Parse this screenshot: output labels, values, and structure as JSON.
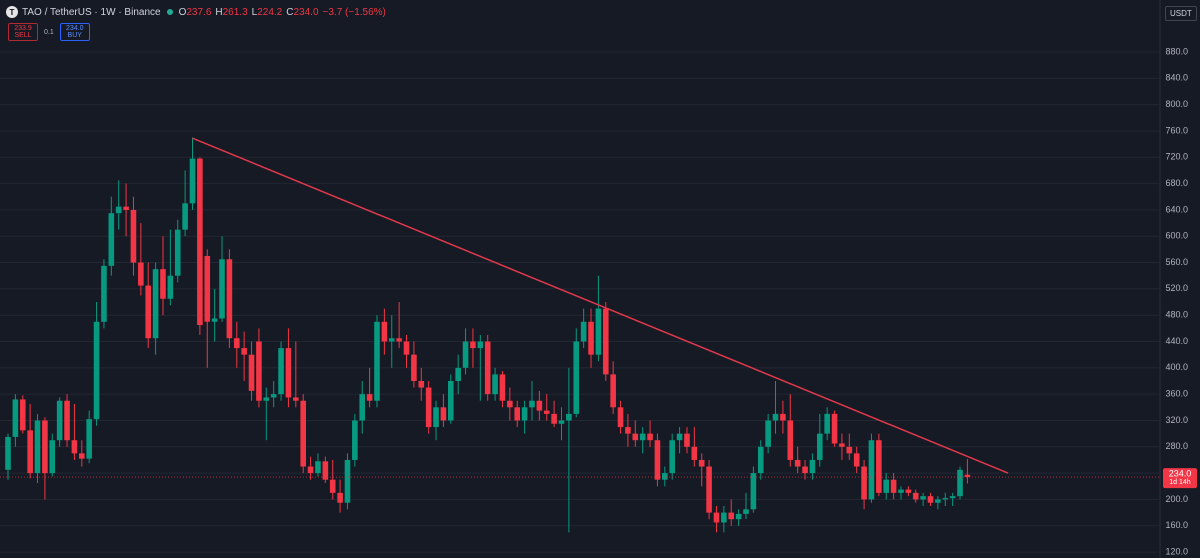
{
  "header": {
    "symbol": "TAO / TetherUS · 1W · Binance",
    "o": "O",
    "h": "H",
    "l": "L",
    "c": "C",
    "ohlc_labels": [
      "237.6",
      "261.3",
      "224.2",
      "234.0"
    ],
    "change": "−3.7 (−1.56%)",
    "sell_price": "233.9",
    "sell": "SELL",
    "spread": "0.1",
    "buy_price": "234.0",
    "buy": "BUY",
    "currency": "USDT"
  },
  "chart_data": {
    "type": "candlestick",
    "up_color": "#089981",
    "down_color": "#f23645",
    "ylim": [
      111,
      959
    ],
    "yticks": [
      {
        "value": 120,
        "label": "120.0"
      },
      {
        "value": 160,
        "label": "160.0"
      },
      {
        "value": 200,
        "label": "200.0"
      },
      {
        "value": 240,
        "label": "240.0"
      },
      {
        "value": 280,
        "label": "280.0"
      },
      {
        "value": 320,
        "label": "320.0"
      },
      {
        "value": 360,
        "label": "360.0"
      },
      {
        "value": 400,
        "label": "400.0"
      },
      {
        "value": 440,
        "label": "440.0"
      },
      {
        "value": 480,
        "label": "480.0"
      },
      {
        "value": 520,
        "label": "520.0"
      },
      {
        "value": 560,
        "label": "560.0"
      },
      {
        "value": 600,
        "label": "600.0"
      },
      {
        "value": 640,
        "label": "640.0"
      },
      {
        "value": 680,
        "label": "680.0"
      },
      {
        "value": 720,
        "label": "720.0"
      },
      {
        "value": 760,
        "label": "760.0"
      },
      {
        "value": 800,
        "label": "800.0"
      },
      {
        "value": 840,
        "label": "840.0"
      },
      {
        "value": 880,
        "label": "880.0"
      }
    ],
    "grid": true,
    "price_label": "234.0",
    "countdown": "1d 14h",
    "trendline": {
      "color": "#e0394a",
      "from": {
        "index": 25,
        "price": 749
      },
      "to": {
        "index": 135.5,
        "price": 240
      }
    },
    "candles": [
      [
        245,
        300,
        230,
        295
      ],
      [
        295,
        360,
        280,
        352
      ],
      [
        352,
        358,
        300,
        305
      ],
      [
        305,
        345,
        232,
        240
      ],
      [
        240,
        330,
        225,
        320
      ],
      [
        320,
        325,
        200,
        240
      ],
      [
        240,
        300,
        235,
        290
      ],
      [
        290,
        355,
        280,
        350
      ],
      [
        350,
        360,
        280,
        290
      ],
      [
        290,
        345,
        260,
        270
      ],
      [
        270,
        290,
        250,
        262
      ],
      [
        262,
        335,
        255,
        322
      ],
      [
        322,
        500,
        312,
        470
      ],
      [
        470,
        565,
        460,
        555
      ],
      [
        555,
        660,
        540,
        635
      ],
      [
        635,
        685,
        610,
        645
      ],
      [
        645,
        680,
        600,
        640
      ],
      [
        640,
        660,
        540,
        560
      ],
      [
        560,
        620,
        510,
        525
      ],
      [
        525,
        560,
        430,
        445
      ],
      [
        445,
        560,
        420,
        550
      ],
      [
        550,
        600,
        480,
        505
      ],
      [
        505,
        610,
        495,
        540
      ],
      [
        540,
        625,
        530,
        610
      ],
      [
        610,
        700,
        600,
        650
      ],
      [
        650,
        750,
        640,
        718
      ],
      [
        718,
        720,
        450,
        465
      ],
      [
        570,
        580,
        400,
        470
      ],
      [
        470,
        520,
        440,
        475
      ],
      [
        475,
        600,
        470,
        565
      ],
      [
        565,
        580,
        430,
        445
      ],
      [
        445,
        470,
        400,
        430
      ],
      [
        430,
        455,
        380,
        420
      ],
      [
        420,
        440,
        350,
        365
      ],
      [
        440,
        460,
        340,
        350
      ],
      [
        350,
        370,
        290,
        355
      ],
      [
        355,
        380,
        340,
        360
      ],
      [
        360,
        440,
        350,
        430
      ],
      [
        430,
        460,
        340,
        355
      ],
      [
        355,
        440,
        340,
        350
      ],
      [
        350,
        360,
        240,
        250
      ],
      [
        250,
        265,
        230,
        240
      ],
      [
        240,
        270,
        235,
        258
      ],
      [
        258,
        265,
        225,
        230
      ],
      [
        230,
        260,
        200,
        210
      ],
      [
        210,
        230,
        180,
        195
      ],
      [
        195,
        270,
        185,
        260
      ],
      [
        260,
        330,
        250,
        320
      ],
      [
        320,
        380,
        300,
        360
      ],
      [
        360,
        400,
        340,
        350
      ],
      [
        350,
        480,
        340,
        470
      ],
      [
        470,
        490,
        420,
        440
      ],
      [
        440,
        480,
        400,
        445
      ],
      [
        445,
        500,
        430,
        440
      ],
      [
        440,
        450,
        400,
        420
      ],
      [
        420,
        440,
        370,
        380
      ],
      [
        380,
        400,
        350,
        370
      ],
      [
        370,
        380,
        300,
        310
      ],
      [
        310,
        350,
        290,
        340
      ],
      [
        340,
        360,
        310,
        320
      ],
      [
        320,
        390,
        315,
        380
      ],
      [
        380,
        420,
        360,
        400
      ],
      [
        400,
        460,
        390,
        440
      ],
      [
        440,
        460,
        400,
        430
      ],
      [
        430,
        450,
        350,
        440
      ],
      [
        440,
        450,
        350,
        360
      ],
      [
        360,
        400,
        350,
        390
      ],
      [
        390,
        395,
        340,
        350
      ],
      [
        350,
        370,
        320,
        340
      ],
      [
        340,
        350,
        310,
        320
      ],
      [
        320,
        350,
        300,
        340
      ],
      [
        340,
        380,
        320,
        350
      ],
      [
        350,
        365,
        320,
        335
      ],
      [
        335,
        360,
        320,
        330
      ],
      [
        330,
        350,
        310,
        315
      ],
      [
        315,
        340,
        290,
        320
      ],
      [
        320,
        400,
        150,
        330
      ],
      [
        330,
        460,
        325,
        440
      ],
      [
        440,
        490,
        430,
        470
      ],
      [
        470,
        490,
        400,
        420
      ],
      [
        420,
        540,
        410,
        490
      ],
      [
        490,
        500,
        380,
        390
      ],
      [
        390,
        410,
        330,
        340
      ],
      [
        340,
        350,
        300,
        310
      ],
      [
        310,
        330,
        280,
        300
      ],
      [
        300,
        320,
        280,
        290
      ],
      [
        290,
        310,
        270,
        300
      ],
      [
        300,
        320,
        280,
        290
      ],
      [
        290,
        300,
        220,
        230
      ],
      [
        230,
        250,
        220,
        240
      ],
      [
        240,
        300,
        230,
        290
      ],
      [
        290,
        310,
        270,
        300
      ],
      [
        300,
        310,
        270,
        280
      ],
      [
        280,
        310,
        250,
        260
      ],
      [
        260,
        270,
        220,
        250
      ],
      [
        250,
        260,
        170,
        180
      ],
      [
        180,
        190,
        150,
        165
      ],
      [
        165,
        190,
        150,
        180
      ],
      [
        180,
        200,
        160,
        170
      ],
      [
        170,
        185,
        160,
        178
      ],
      [
        178,
        210,
        170,
        185
      ],
      [
        185,
        250,
        180,
        240
      ],
      [
        240,
        290,
        230,
        280
      ],
      [
        280,
        330,
        270,
        320
      ],
      [
        320,
        380,
        300,
        330
      ],
      [
        330,
        350,
        300,
        320
      ],
      [
        320,
        360,
        250,
        260
      ],
      [
        260,
        280,
        240,
        250
      ],
      [
        250,
        260,
        230,
        240
      ],
      [
        240,
        270,
        230,
        260
      ],
      [
        260,
        330,
        250,
        300
      ],
      [
        300,
        340,
        290,
        330
      ],
      [
        330,
        335,
        280,
        285
      ],
      [
        285,
        300,
        260,
        280
      ],
      [
        280,
        300,
        260,
        270
      ],
      [
        270,
        280,
        240,
        250
      ],
      [
        250,
        260,
        185,
        200
      ],
      [
        200,
        300,
        195,
        290
      ],
      [
        290,
        300,
        205,
        210
      ],
      [
        210,
        240,
        200,
        230
      ],
      [
        230,
        240,
        200,
        210
      ],
      [
        210,
        220,
        200,
        215
      ],
      [
        215,
        220,
        205,
        210
      ],
      [
        210,
        215,
        195,
        200
      ],
      [
        200,
        210,
        190,
        205
      ],
      [
        205,
        210,
        190,
        195
      ],
      [
        195,
        205,
        185,
        200
      ],
      [
        200,
        210,
        190,
        202
      ],
      [
        202,
        210,
        190,
        205
      ],
      [
        205,
        250,
        200,
        245
      ],
      [
        237.6,
        261.3,
        224.2,
        234.0
      ]
    ]
  }
}
